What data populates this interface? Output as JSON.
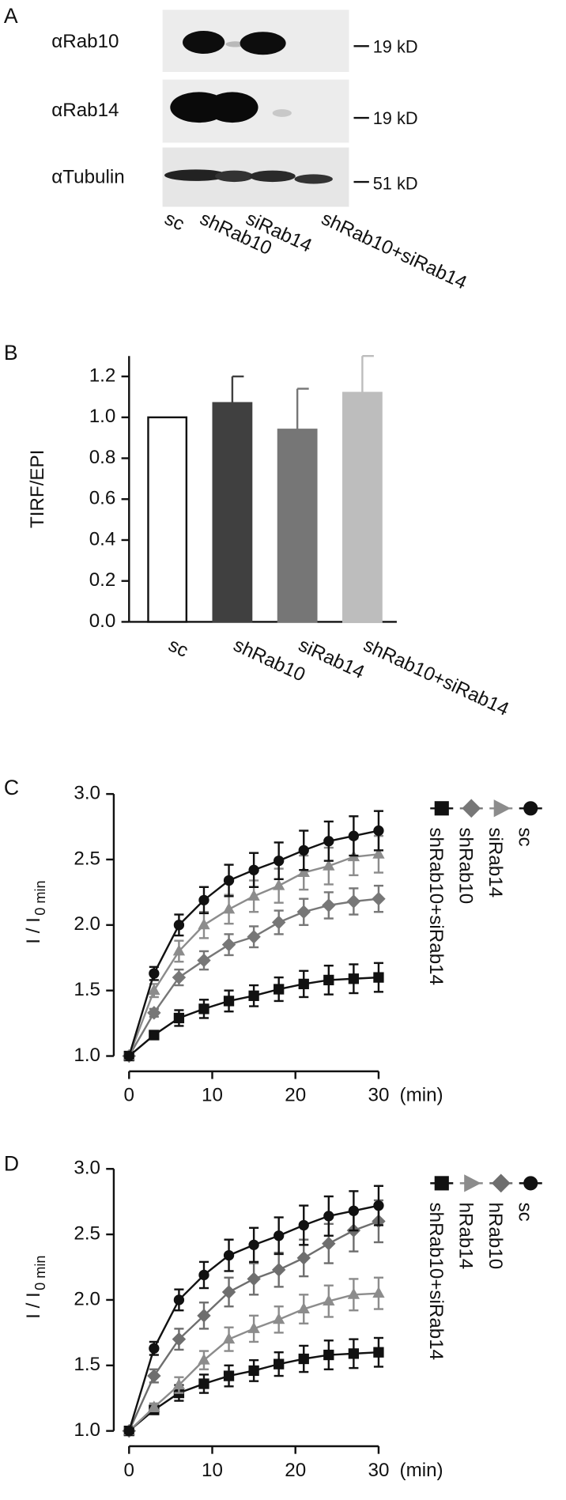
{
  "blot": {
    "panel": "A",
    "rows": [
      "αRab10",
      "αRab14",
      "αTubulin"
    ],
    "sizes": [
      "19 kD",
      "19 kD",
      "51 kD"
    ],
    "lanes": [
      "sc",
      "shRab10",
      "siRab14",
      "shRab10+siRab14"
    ]
  },
  "chart_data": [
    {
      "type": "bar",
      "panel": "B",
      "ylabel": "TIRF/EPI",
      "categories": [
        "sc",
        "shRab10",
        "siRab14",
        "shRab10+siRab14"
      ],
      "values": [
        1.0,
        1.07,
        0.94,
        1.12
      ],
      "errors": [
        null,
        0.13,
        0.2,
        0.18
      ],
      "colors": [
        "#ffffff",
        "#404040",
        "#767676",
        "#bdbdbd"
      ],
      "ylim": [
        0,
        1.3
      ],
      "yticks": [
        {
          "value": 0,
          "label": "0.0"
        },
        {
          "value": 0.2,
          "label": "0.2"
        },
        {
          "value": 0.4,
          "label": "0.4"
        },
        {
          "value": 0.6,
          "label": "0.6"
        },
        {
          "value": 0.8,
          "label": "0.8"
        },
        {
          "value": 1.0,
          "label": "1.0"
        },
        {
          "value": 1.2,
          "label": "1.2"
        }
      ]
    },
    {
      "type": "line",
      "panel": "C",
      "ylabel": "I / I",
      "ylabel_sub": "0 min",
      "xlabel": "(min)",
      "x": [
        0,
        3,
        6,
        9,
        12,
        15,
        18,
        21,
        24,
        27,
        30
      ],
      "xlim": [
        0,
        30
      ],
      "xticks": [
        0,
        10,
        20,
        30
      ],
      "ylim": [
        1.0,
        3.0
      ],
      "yticks": [
        {
          "value": 1.0,
          "label": "1.0"
        },
        {
          "value": 1.5,
          "label": "1.5"
        },
        {
          "value": 2.0,
          "label": "2.0"
        },
        {
          "value": 2.5,
          "label": "2.5"
        },
        {
          "value": 3.0,
          "label": "3.0"
        }
      ],
      "series": [
        {
          "name": "shRab10+siRab14",
          "color": "#111111",
          "marker": "square",
          "values": [
            1.0,
            1.16,
            1.29,
            1.36,
            1.42,
            1.46,
            1.51,
            1.55,
            1.58,
            1.59,
            1.6
          ],
          "errors": [
            0.02,
            0.03,
            0.06,
            0.07,
            0.08,
            0.08,
            0.09,
            0.1,
            0.11,
            0.11,
            0.11
          ]
        },
        {
          "name": "shRab10",
          "color": "#777777",
          "marker": "diamond",
          "values": [
            1.0,
            1.33,
            1.6,
            1.73,
            1.85,
            1.91,
            2.02,
            2.1,
            2.15,
            2.18,
            2.2
          ],
          "errors": [
            0.02,
            0.03,
            0.06,
            0.07,
            0.08,
            0.08,
            0.09,
            0.1,
            0.1,
            0.1,
            0.1
          ]
        },
        {
          "name": "siRab14",
          "color": "#8c8c8c",
          "marker": "triangle",
          "values": [
            1.0,
            1.5,
            1.8,
            2.0,
            2.12,
            2.22,
            2.3,
            2.4,
            2.45,
            2.52,
            2.54
          ],
          "errors": [
            0.02,
            0.05,
            0.08,
            0.1,
            0.11,
            0.12,
            0.13,
            0.13,
            0.14,
            0.14,
            0.14
          ]
        },
        {
          "name": "sc",
          "color": "#111111",
          "marker": "circle",
          "values": [
            1.0,
            1.63,
            2.0,
            2.19,
            2.34,
            2.42,
            2.49,
            2.57,
            2.64,
            2.68,
            2.72
          ],
          "errors": [
            0.02,
            0.05,
            0.08,
            0.1,
            0.12,
            0.13,
            0.14,
            0.15,
            0.15,
            0.15,
            0.15
          ]
        }
      ]
    },
    {
      "type": "line",
      "panel": "D",
      "ylabel": "I / I",
      "ylabel_sub": "0 min",
      "xlabel": "(min)",
      "x": [
        0,
        3,
        6,
        9,
        12,
        15,
        18,
        21,
        24,
        27,
        30
      ],
      "xlim": [
        0,
        30
      ],
      "xticks": [
        0,
        10,
        20,
        30
      ],
      "ylim": [
        1.0,
        3.0
      ],
      "yticks": [
        {
          "value": 1.0,
          "label": "1.0"
        },
        {
          "value": 1.5,
          "label": "1.5"
        },
        {
          "value": 2.0,
          "label": "2.0"
        },
        {
          "value": 2.5,
          "label": "2.5"
        },
        {
          "value": 3.0,
          "label": "3.0"
        }
      ],
      "series": [
        {
          "name": "shRab10+siRab14",
          "color": "#111111",
          "marker": "square",
          "values": [
            1.0,
            1.16,
            1.29,
            1.36,
            1.42,
            1.46,
            1.51,
            1.55,
            1.58,
            1.59,
            1.6
          ],
          "errors": [
            0.02,
            0.03,
            0.06,
            0.07,
            0.08,
            0.08,
            0.09,
            0.1,
            0.11,
            0.11,
            0.11
          ]
        },
        {
          "name": "hRab14",
          "color": "#8c8c8c",
          "marker": "triangle",
          "values": [
            1.0,
            1.18,
            1.35,
            1.54,
            1.7,
            1.78,
            1.85,
            1.93,
            1.99,
            2.04,
            2.05
          ],
          "errors": [
            0.02,
            0.03,
            0.06,
            0.07,
            0.09,
            0.1,
            0.1,
            0.11,
            0.12,
            0.12,
            0.12
          ]
        },
        {
          "name": "hRab10",
          "color": "#6e6e6e",
          "marker": "diamond",
          "values": [
            1.0,
            1.42,
            1.7,
            1.88,
            2.06,
            2.16,
            2.23,
            2.32,
            2.43,
            2.53,
            2.6
          ],
          "errors": [
            0.02,
            0.05,
            0.08,
            0.1,
            0.11,
            0.12,
            0.13,
            0.14,
            0.15,
            0.16,
            0.16
          ]
        },
        {
          "name": "sc",
          "color": "#111111",
          "marker": "circle",
          "values": [
            1.0,
            1.63,
            2.0,
            2.19,
            2.34,
            2.42,
            2.49,
            2.57,
            2.64,
            2.68,
            2.72
          ],
          "errors": [
            0.02,
            0.05,
            0.08,
            0.1,
            0.12,
            0.13,
            0.14,
            0.15,
            0.15,
            0.15,
            0.15
          ]
        }
      ]
    }
  ]
}
